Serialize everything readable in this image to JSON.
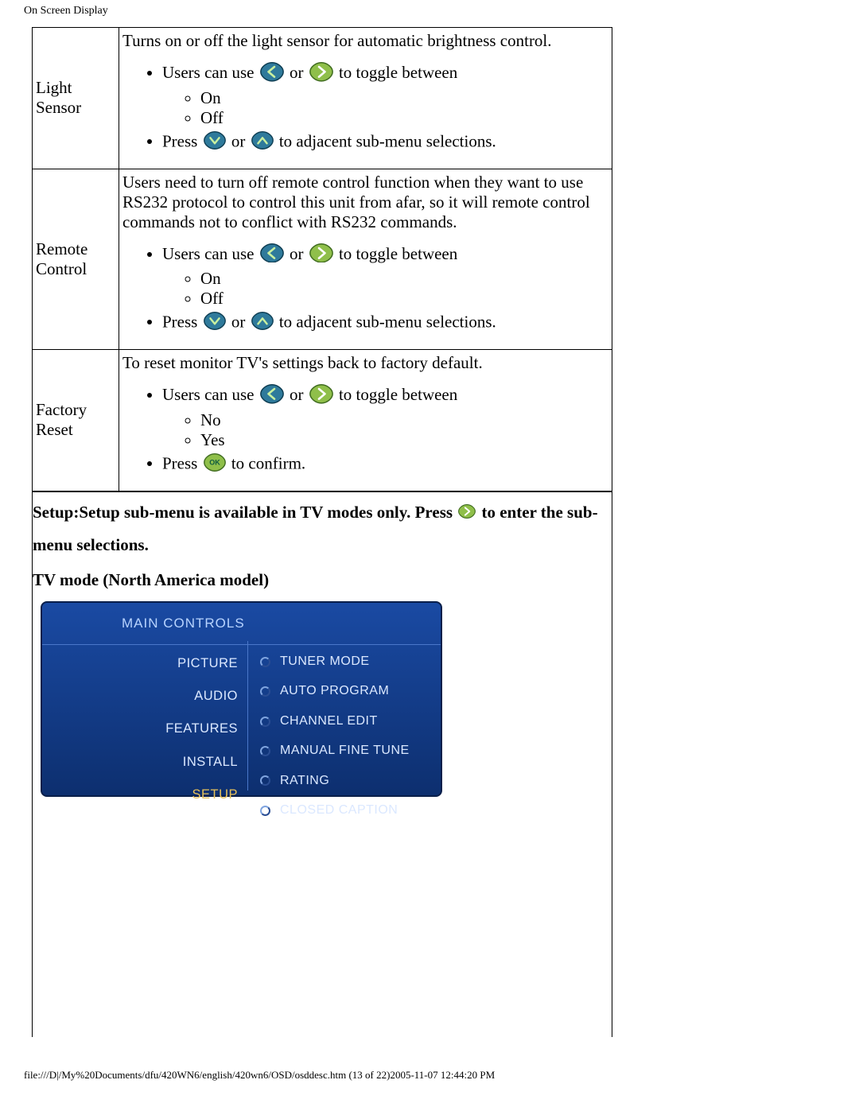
{
  "page_header": "On Screen Display",
  "rows": [
    {
      "label": "Light Sensor",
      "intro": "Turns on or off the light sensor for automatic brightness control.",
      "line1_a": "Users can use ",
      "line1_mid": " or ",
      "line1_b": " to toggle between",
      "opts": [
        "On",
        "Off"
      ],
      "line2_a": "Press ",
      "line2_mid": " or ",
      "line2_b": " to adjacent sub-menu selections."
    },
    {
      "label": "Remote Control",
      "intro": "Users need to turn off remote control function when they want to use RS232 protocol to control this unit from afar, so it will remote control commands not to conflict with RS232 commands.",
      "line1_a": "Users can use ",
      "line1_mid": " or ",
      "line1_b": " to toggle between",
      "opts": [
        "On",
        "Off"
      ],
      "line2_a": "Press ",
      "line2_mid": " or ",
      "line2_b": " to adjacent sub-menu selections."
    },
    {
      "label": "Factory Reset",
      "intro": "To reset monitor TV's settings back to factory default.",
      "line1_a": "Users can use ",
      "line1_mid": " or ",
      "line1_b": " to toggle between",
      "opts": [
        "No",
        "Yes"
      ],
      "confirm_a": "Press ",
      "confirm_b": " to confirm."
    }
  ],
  "setup_note_a": "Setup:Setup sub-menu is available in TV modes only. Press ",
  "setup_note_b": " to enter the sub-menu selections.",
  "tv_mode_label": "TV mode (North America model)",
  "osd": {
    "title": "MAIN  CONTROLS",
    "left_items": [
      "PICTURE",
      "AUDIO",
      "FEATURES",
      "INSTALL",
      "SETUP"
    ],
    "selected_index": 4,
    "right_items": [
      "TUNER MODE",
      "AUTO PROGRAM",
      "CHANNEL EDIT",
      "MANUAL FINE TUNE",
      "RATING",
      "CLOSED CAPTION"
    ],
    "title_color": "#b7d3ff",
    "text_color": "#dbe8ff",
    "selected_color": "#e6c05a",
    "bg_top": "#1a4aa3",
    "bg_bottom": "#0d2f6f"
  },
  "icons": {
    "left": {
      "fill": "#2f7a9b",
      "stroke": "#0e3d52",
      "glyph": "#c9f0a0"
    },
    "right": {
      "fill": "#8fbf4a",
      "stroke": "#3f6b1f",
      "glyph": "#ffffff"
    },
    "down": {
      "fill": "#2f7a9b",
      "stroke": "#0e3d52",
      "glyph": "#c9f0a0"
    },
    "up": {
      "fill": "#2f7a9b",
      "stroke": "#0e3d52",
      "glyph": "#c9f0a0"
    },
    "ok": {
      "fill": "#8fbf4a",
      "stroke": "#3f6b1f",
      "text": "OK",
      "text_color": "#0e5a3f"
    },
    "right_small": {
      "fill": "#8fbf4a",
      "stroke": "#3f6b1f",
      "glyph": "#ffffff"
    }
  },
  "footer": "file:///D|/My%20Documents/dfu/420WN6/english/420wn6/OSD/osddesc.htm (13 of 22)2005-11-07 12:44:20 PM"
}
